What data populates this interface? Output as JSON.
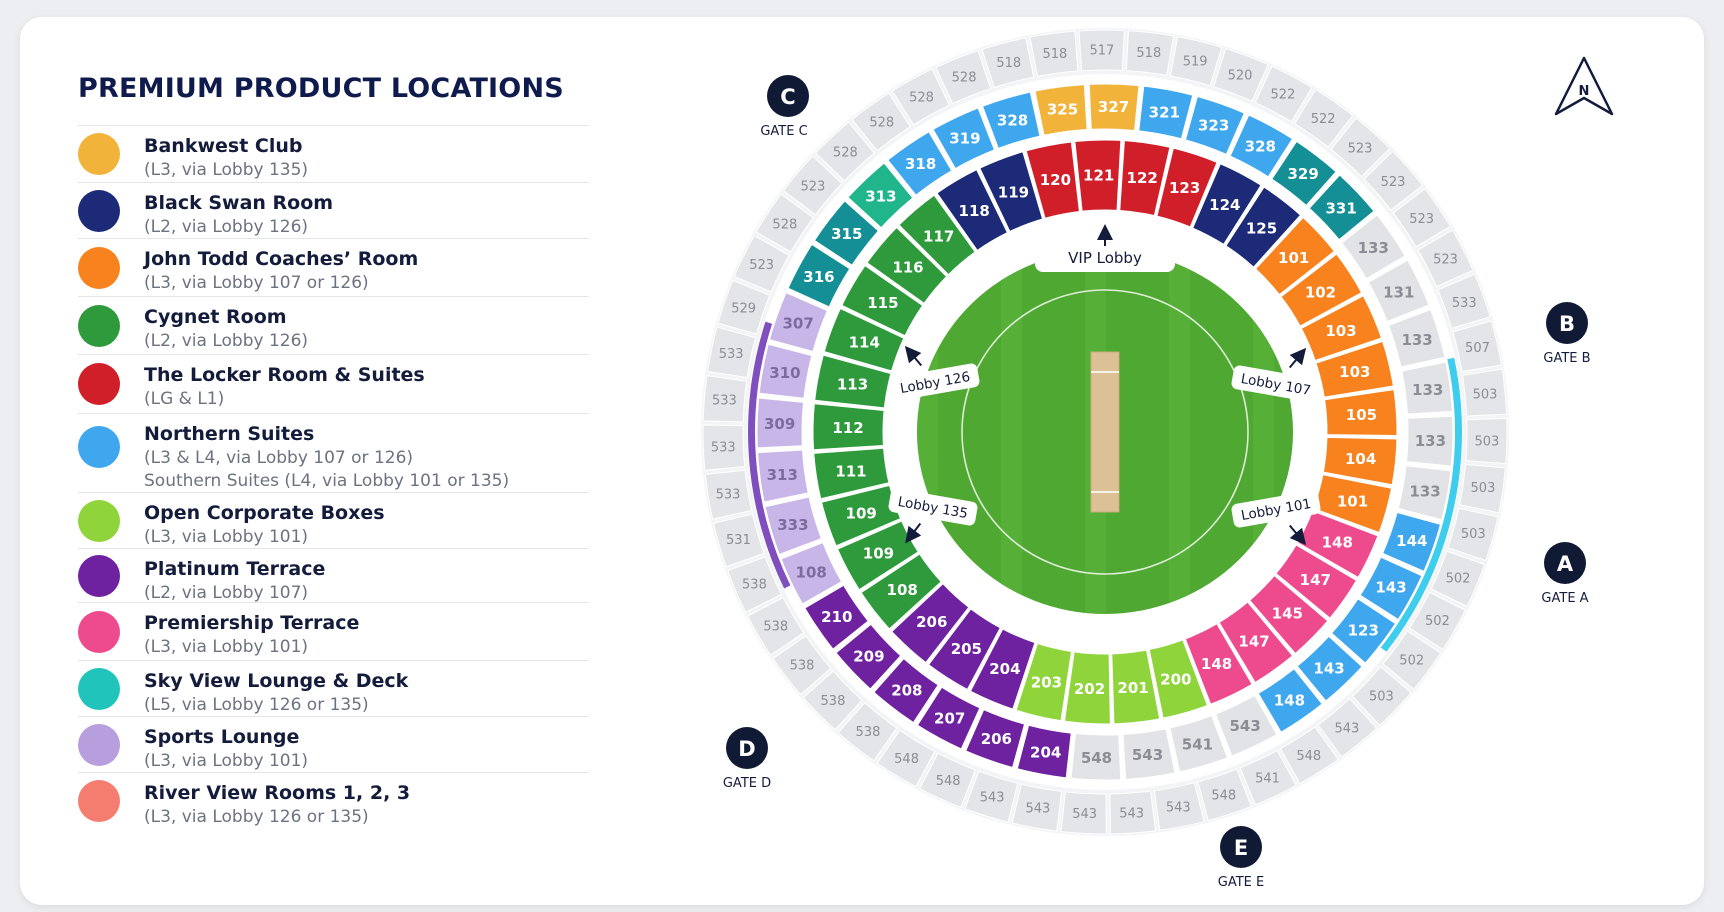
{
  "title": "PREMIUM PRODUCT LOCATIONS",
  "legend": [
    {
      "name": "Bankwest Club",
      "sub": "(L3, via Lobby 135)",
      "color": "#f2b33a"
    },
    {
      "name": "Black Swan Room",
      "sub": "(L2, via Lobby 126)",
      "color": "#1c2a78"
    },
    {
      "name": "John Todd Coaches’ Room",
      "sub": "(L3, via Lobby 107 or 126)",
      "color": "#f7821e"
    },
    {
      "name": "Cygnet Room",
      "sub": "(L2, via Lobby 126)",
      "color": "#2e9a3c"
    },
    {
      "name": "The Locker Room & Suites",
      "sub": "(LG & L1)",
      "color": "#d11f2a"
    },
    {
      "name": "Northern Suites",
      "sub": "(L3 & L4, via Lobby 107 or 126)",
      "sub2": "Southern Suites (L4, via Lobby 101 or 135)",
      "color": "#3ea7ee"
    },
    {
      "name": "Open Corporate Boxes",
      "sub": "(L3, via Lobby 101)",
      "color": "#8fd43a"
    },
    {
      "name": "Platinum Terrace",
      "sub": "(L2, via Lobby 107)",
      "color": "#6f22a0"
    },
    {
      "name": "Premiership Terrace",
      "sub": "(L3, via Lobby 101)",
      "color": "#ee4b8e"
    },
    {
      "name": "Sky View Lounge & Deck",
      "sub": "(L5, via Lobby 126 or 135)",
      "color": "#20c4bb"
    },
    {
      "name": "Sports Lounge",
      "sub": "(L3, via Lobby 101)",
      "color": "#b79edc"
    },
    {
      "name": "River View Rooms 1, 2, 3",
      "sub": "(L3, via Lobby 126 or 135)",
      "color": "#f57d70"
    }
  ],
  "gates": [
    {
      "letter": "C",
      "label": "GATE C"
    },
    {
      "letter": "B",
      "label": "GATE B"
    },
    {
      "letter": "A",
      "label": "GATE A"
    },
    {
      "letter": "D",
      "label": "GATE D"
    },
    {
      "letter": "E",
      "label": "GATE E"
    }
  ],
  "compass": "N",
  "lobbies": {
    "vip": "VIP Lobby",
    "l126": "Lobby 126",
    "l107": "Lobby 107",
    "l135": "Lobby 135",
    "l101": "Lobby 101"
  },
  "rings": {
    "outer": [
      "517",
      "518",
      "519",
      "520",
      "522",
      "522",
      "523",
      "523",
      "523",
      "523",
      "533",
      "507",
      "503",
      "503",
      "503",
      "503",
      "502",
      "502",
      "502",
      "503",
      "543",
      "548",
      "541",
      "548",
      "543",
      "543",
      "543",
      "543",
      "543",
      "548",
      "548",
      "538",
      "538",
      "538",
      "538",
      "538",
      "531",
      "533",
      "533",
      "533",
      "533",
      "529",
      "523",
      "528",
      "523",
      "528",
      "528",
      "528",
      "528",
      "518",
      "518"
    ],
    "level4": [
      {
        "label": "325",
        "color": "#f2b33a"
      },
      {
        "label": "327",
        "color": "#f2b33a"
      },
      {
        "label": "321",
        "color": "#3ea7ee"
      },
      {
        "label": "323",
        "color": "#3ea7ee"
      },
      {
        "label": "328",
        "color": "#3ea7ee"
      },
      {
        "label": "329",
        "color": "#138f95"
      },
      {
        "label": "331",
        "color": "#138f95"
      },
      {
        "label": "133",
        "color": "#e2e3e6"
      },
      {
        "label": "131",
        "color": "#e2e3e6"
      },
      {
        "label": "133",
        "color": "#e2e3e6"
      },
      {
        "label": "133",
        "color": "#e2e3e6"
      },
      {
        "label": "133",
        "color": "#e2e3e6"
      },
      {
        "label": "133",
        "color": "#e2e3e6"
      },
      {
        "label": "144",
        "color": "#3ea7ee"
      },
      {
        "label": "143",
        "color": "#3ea7ee"
      },
      {
        "label": "123",
        "color": "#3ea7ee"
      },
      {
        "label": "143",
        "color": "#3ea7ee"
      },
      {
        "label": "148",
        "color": "#3ea7ee"
      },
      {
        "label": "543",
        "color": "#e2e3e6"
      },
      {
        "label": "541",
        "color": "#e2e3e6"
      },
      {
        "label": "543",
        "color": "#e2e3e6"
      },
      {
        "label": "548",
        "color": "#e2e3e6"
      },
      {
        "label": "204",
        "color": "#6f22a0"
      },
      {
        "label": "206",
        "color": "#6f22a0"
      },
      {
        "label": "207",
        "color": "#6f22a0"
      },
      {
        "label": "208",
        "color": "#6f22a0"
      },
      {
        "label": "209",
        "color": "#6f22a0"
      },
      {
        "label": "210",
        "color": "#6f22a0"
      },
      {
        "label": "108",
        "color": "#c9b6e8"
      },
      {
        "label": "333",
        "color": "#c9b6e8"
      },
      {
        "label": "313",
        "color": "#c9b6e8"
      },
      {
        "label": "309",
        "color": "#c9b6e8"
      },
      {
        "label": "310",
        "color": "#c9b6e8"
      },
      {
        "label": "307",
        "color": "#c9b6e8"
      },
      {
        "label": "316",
        "color": "#138f95"
      },
      {
        "label": "315",
        "color": "#138f95"
      },
      {
        "label": "313",
        "color": "#20b58a"
      },
      {
        "label": "318",
        "color": "#3ea7ee"
      },
      {
        "label": "319",
        "color": "#3ea7ee"
      },
      {
        "label": "328",
        "color": "#3ea7ee"
      }
    ],
    "level3": [
      {
        "label": "120",
        "color": "#d11f2a"
      },
      {
        "label": "121",
        "color": "#d11f2a"
      },
      {
        "label": "122",
        "color": "#d11f2a"
      },
      {
        "label": "123",
        "color": "#d11f2a"
      },
      {
        "label": "124",
        "color": "#1c2a78"
      },
      {
        "label": "125",
        "color": "#1c2a78"
      },
      {
        "label": "101",
        "color": "#f7821e"
      },
      {
        "label": "102",
        "color": "#f7821e"
      },
      {
        "label": "103",
        "color": "#f7821e"
      },
      {
        "label": "103",
        "color": "#f7821e"
      },
      {
        "label": "105",
        "color": "#f7821e"
      },
      {
        "label": "104",
        "color": "#f7821e"
      },
      {
        "label": "101",
        "color": "#f7821e"
      },
      {
        "label": "148",
        "color": "#ee4b8e"
      },
      {
        "label": "147",
        "color": "#ee4b8e"
      },
      {
        "label": "145",
        "color": "#ee4b8e"
      },
      {
        "label": "147",
        "color": "#ee4b8e"
      },
      {
        "label": "148",
        "color": "#ee4b8e"
      },
      {
        "label": "200",
        "color": "#8fd43a"
      },
      {
        "label": "201",
        "color": "#8fd43a"
      },
      {
        "label": "202",
        "color": "#8fd43a"
      },
      {
        "label": "203",
        "color": "#8fd43a"
      },
      {
        "label": "204",
        "color": "#6f22a0"
      },
      {
        "label": "205",
        "color": "#6f22a0"
      },
      {
        "label": "206",
        "color": "#6f22a0"
      },
      {
        "label": "108",
        "color": "#2e9a3c"
      },
      {
        "label": "109",
        "color": "#2e9a3c"
      },
      {
        "label": "109",
        "color": "#2e9a3c"
      },
      {
        "label": "111",
        "color": "#2e9a3c"
      },
      {
        "label": "112",
        "color": "#2e9a3c"
      },
      {
        "label": "113",
        "color": "#2e9a3c"
      },
      {
        "label": "114",
        "color": "#2e9a3c"
      },
      {
        "label": "115",
        "color": "#2e9a3c"
      },
      {
        "label": "116",
        "color": "#2e9a3c"
      },
      {
        "label": "117",
        "color": "#2e9a3c"
      },
      {
        "label": "118",
        "color": "#1c2a78"
      },
      {
        "label": "119",
        "color": "#1c2a78"
      }
    ]
  },
  "colors": {
    "sky": "#3fcdee",
    "platinum": "#7f4fbd",
    "field": "#4fa832",
    "pitch": "#dcc197",
    "navy": "#141c3c"
  }
}
